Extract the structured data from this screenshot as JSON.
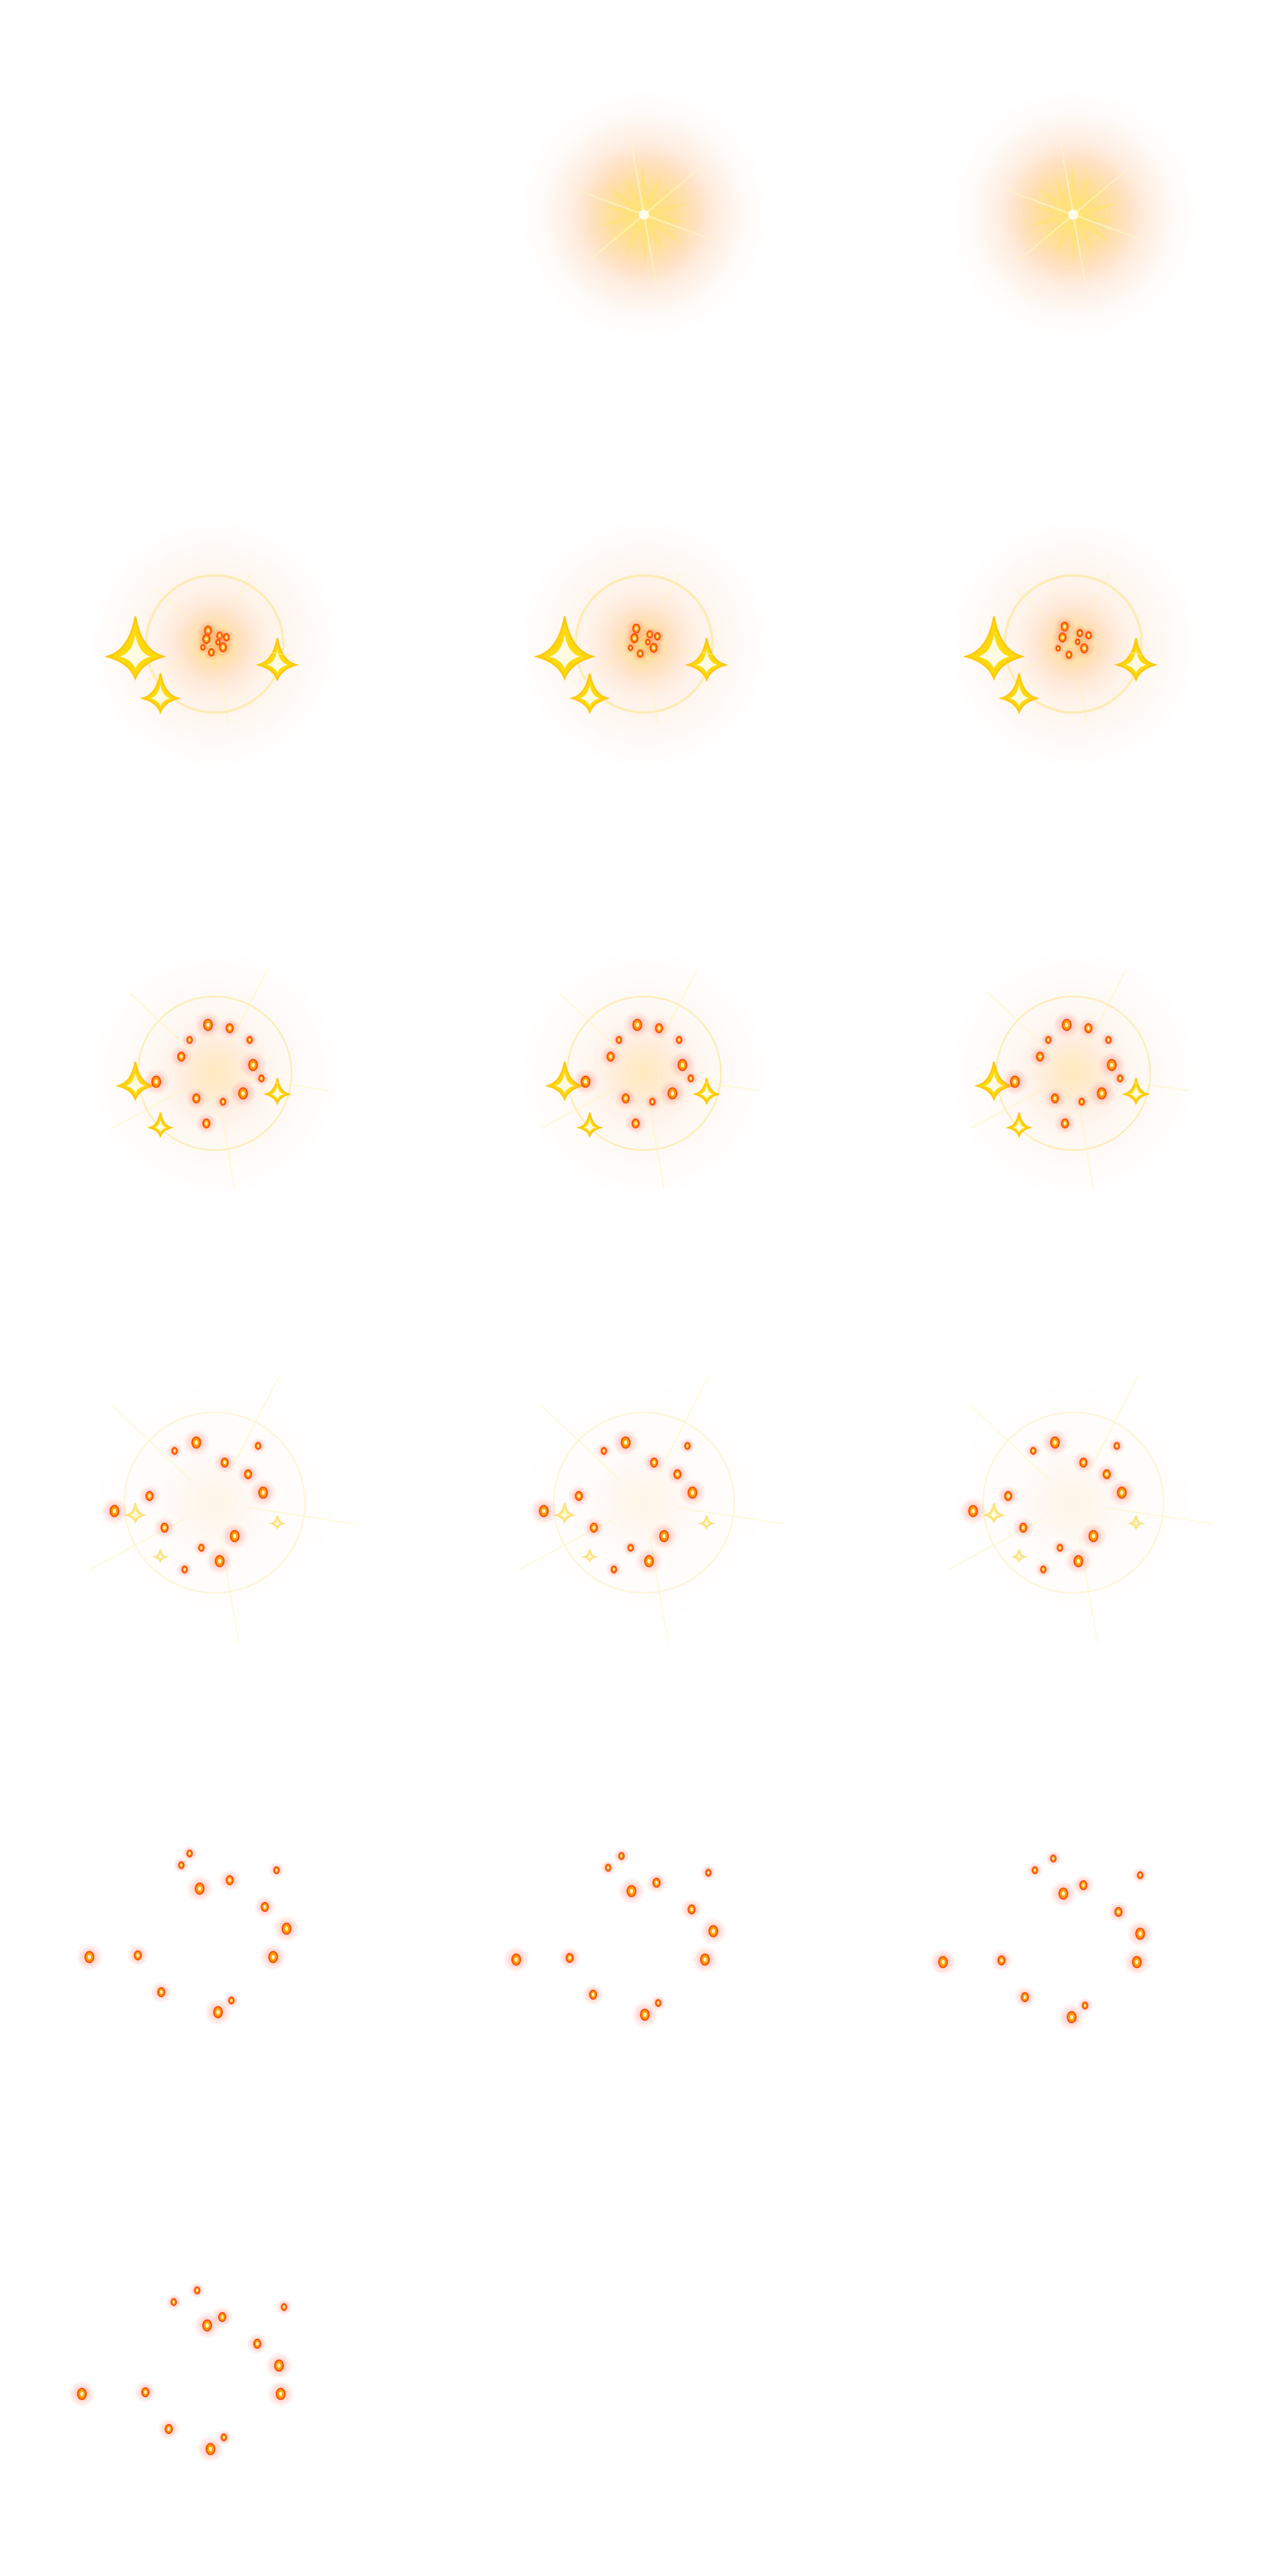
{
  "spritesheet": {
    "columns": 3,
    "rows": 6,
    "frame_count": 16,
    "first_frame_empty": true,
    "colors": {
      "glow_core": "#ffe27a",
      "glow_halo": "#ffd56b",
      "aura": "#ffb27a",
      "star": "#ffd800",
      "star_edge": "#ffc400",
      "ring": "#ffe9a8",
      "ember_core": "#ff4a00",
      "ember_ring": "#ff9d00",
      "ember_glow": "#ff7a6a"
    },
    "frames": [
      {
        "index": 0,
        "phase": "empty"
      },
      {
        "index": 1,
        "phase": "flash"
      },
      {
        "index": 2,
        "phase": "flash"
      },
      {
        "index": 3,
        "phase": "burst"
      },
      {
        "index": 4,
        "phase": "burst"
      },
      {
        "index": 5,
        "phase": "burst"
      },
      {
        "index": 6,
        "phase": "scatter"
      },
      {
        "index": 7,
        "phase": "scatter"
      },
      {
        "index": 8,
        "phase": "scatter"
      },
      {
        "index": 9,
        "phase": "fade"
      },
      {
        "index": 10,
        "phase": "fade"
      },
      {
        "index": 11,
        "phase": "fade"
      },
      {
        "index": 12,
        "phase": "embers"
      },
      {
        "index": 13,
        "phase": "embers"
      },
      {
        "index": 14,
        "phase": "embers"
      },
      {
        "index": 15,
        "phase": "embers"
      }
    ]
  }
}
